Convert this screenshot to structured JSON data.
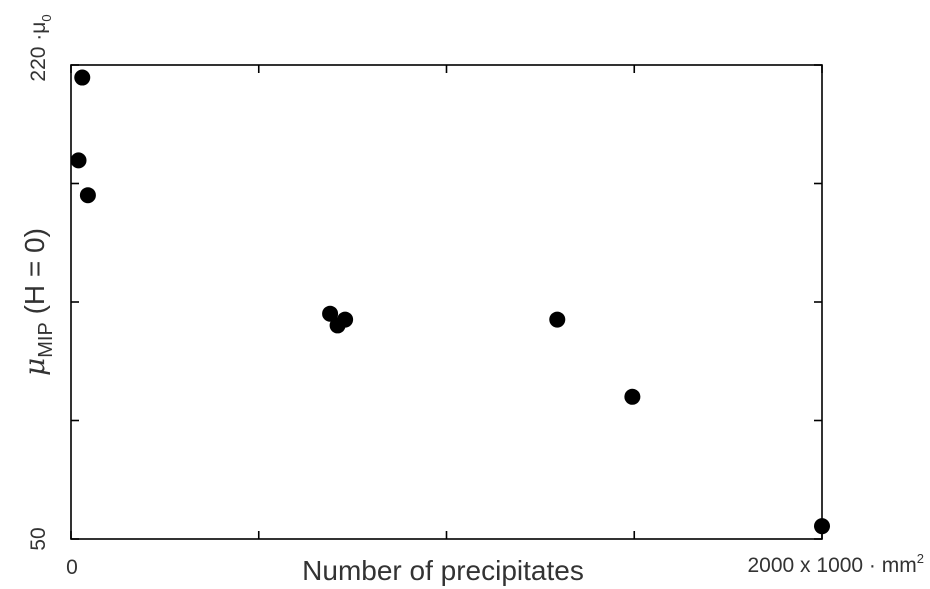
{
  "chart_data": {
    "type": "scatter",
    "title": "",
    "xlabel": "Number of precipitates",
    "ylabel": {
      "symbol": "μ",
      "subscript": "MIP",
      "suffix": " (H = 0)"
    },
    "x_unit_label": {
      "text": "2000 x 1000 · mm",
      "superscript": "2"
    },
    "y_unit_label": {
      "text": "220 ·μ",
      "subscript": "0"
    },
    "tick_labels": {
      "x_min": "0",
      "y_min": "50"
    },
    "xlim": [
      0,
      2000
    ],
    "ylim": [
      50,
      220
    ],
    "x_ticks": [
      0,
      500,
      1000,
      1500,
      2000
    ],
    "y_ticks": [
      50,
      92.5,
      135,
      177.5,
      220
    ],
    "grid": false,
    "legend": "none",
    "marker_color": "#000000",
    "points": [
      {
        "x": 30,
        "y": 215.5
      },
      {
        "x": 20,
        "y": 185.8
      },
      {
        "x": 45,
        "y": 173.3
      },
      {
        "x": 690,
        "y": 130.8
      },
      {
        "x": 710,
        "y": 126.6
      },
      {
        "x": 730,
        "y": 128.7
      },
      {
        "x": 1295,
        "y": 128.7
      },
      {
        "x": 1495,
        "y": 101.0
      },
      {
        "x": 2000,
        "y": 54.6
      }
    ]
  }
}
